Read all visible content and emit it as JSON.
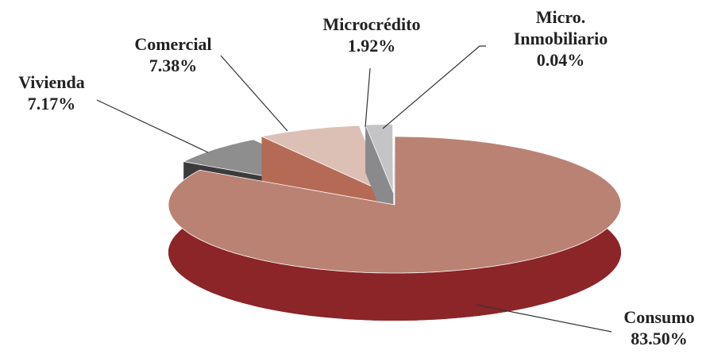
{
  "chart_data": {
    "type": "pie3d",
    "categories": [
      "Consumo",
      "Vivienda",
      "Comercial",
      "Microcrédito",
      "Micro. Inmobiliario"
    ],
    "values": [
      83.5,
      7.17,
      7.38,
      1.92,
      0.04
    ],
    "value_labels": [
      "83.50%",
      "7.17%",
      "7.38%",
      "1.92%",
      "0.04%"
    ],
    "colors": [
      "#b98273",
      "#8e8e8e",
      "#dcc0b6",
      "#c4c4c6",
      "#d8d8da"
    ],
    "side_colors": [
      "#8b2528",
      "#3b3b3b",
      "#b56a55",
      "#8a8a8c",
      "#a0a0a2"
    ]
  }
}
